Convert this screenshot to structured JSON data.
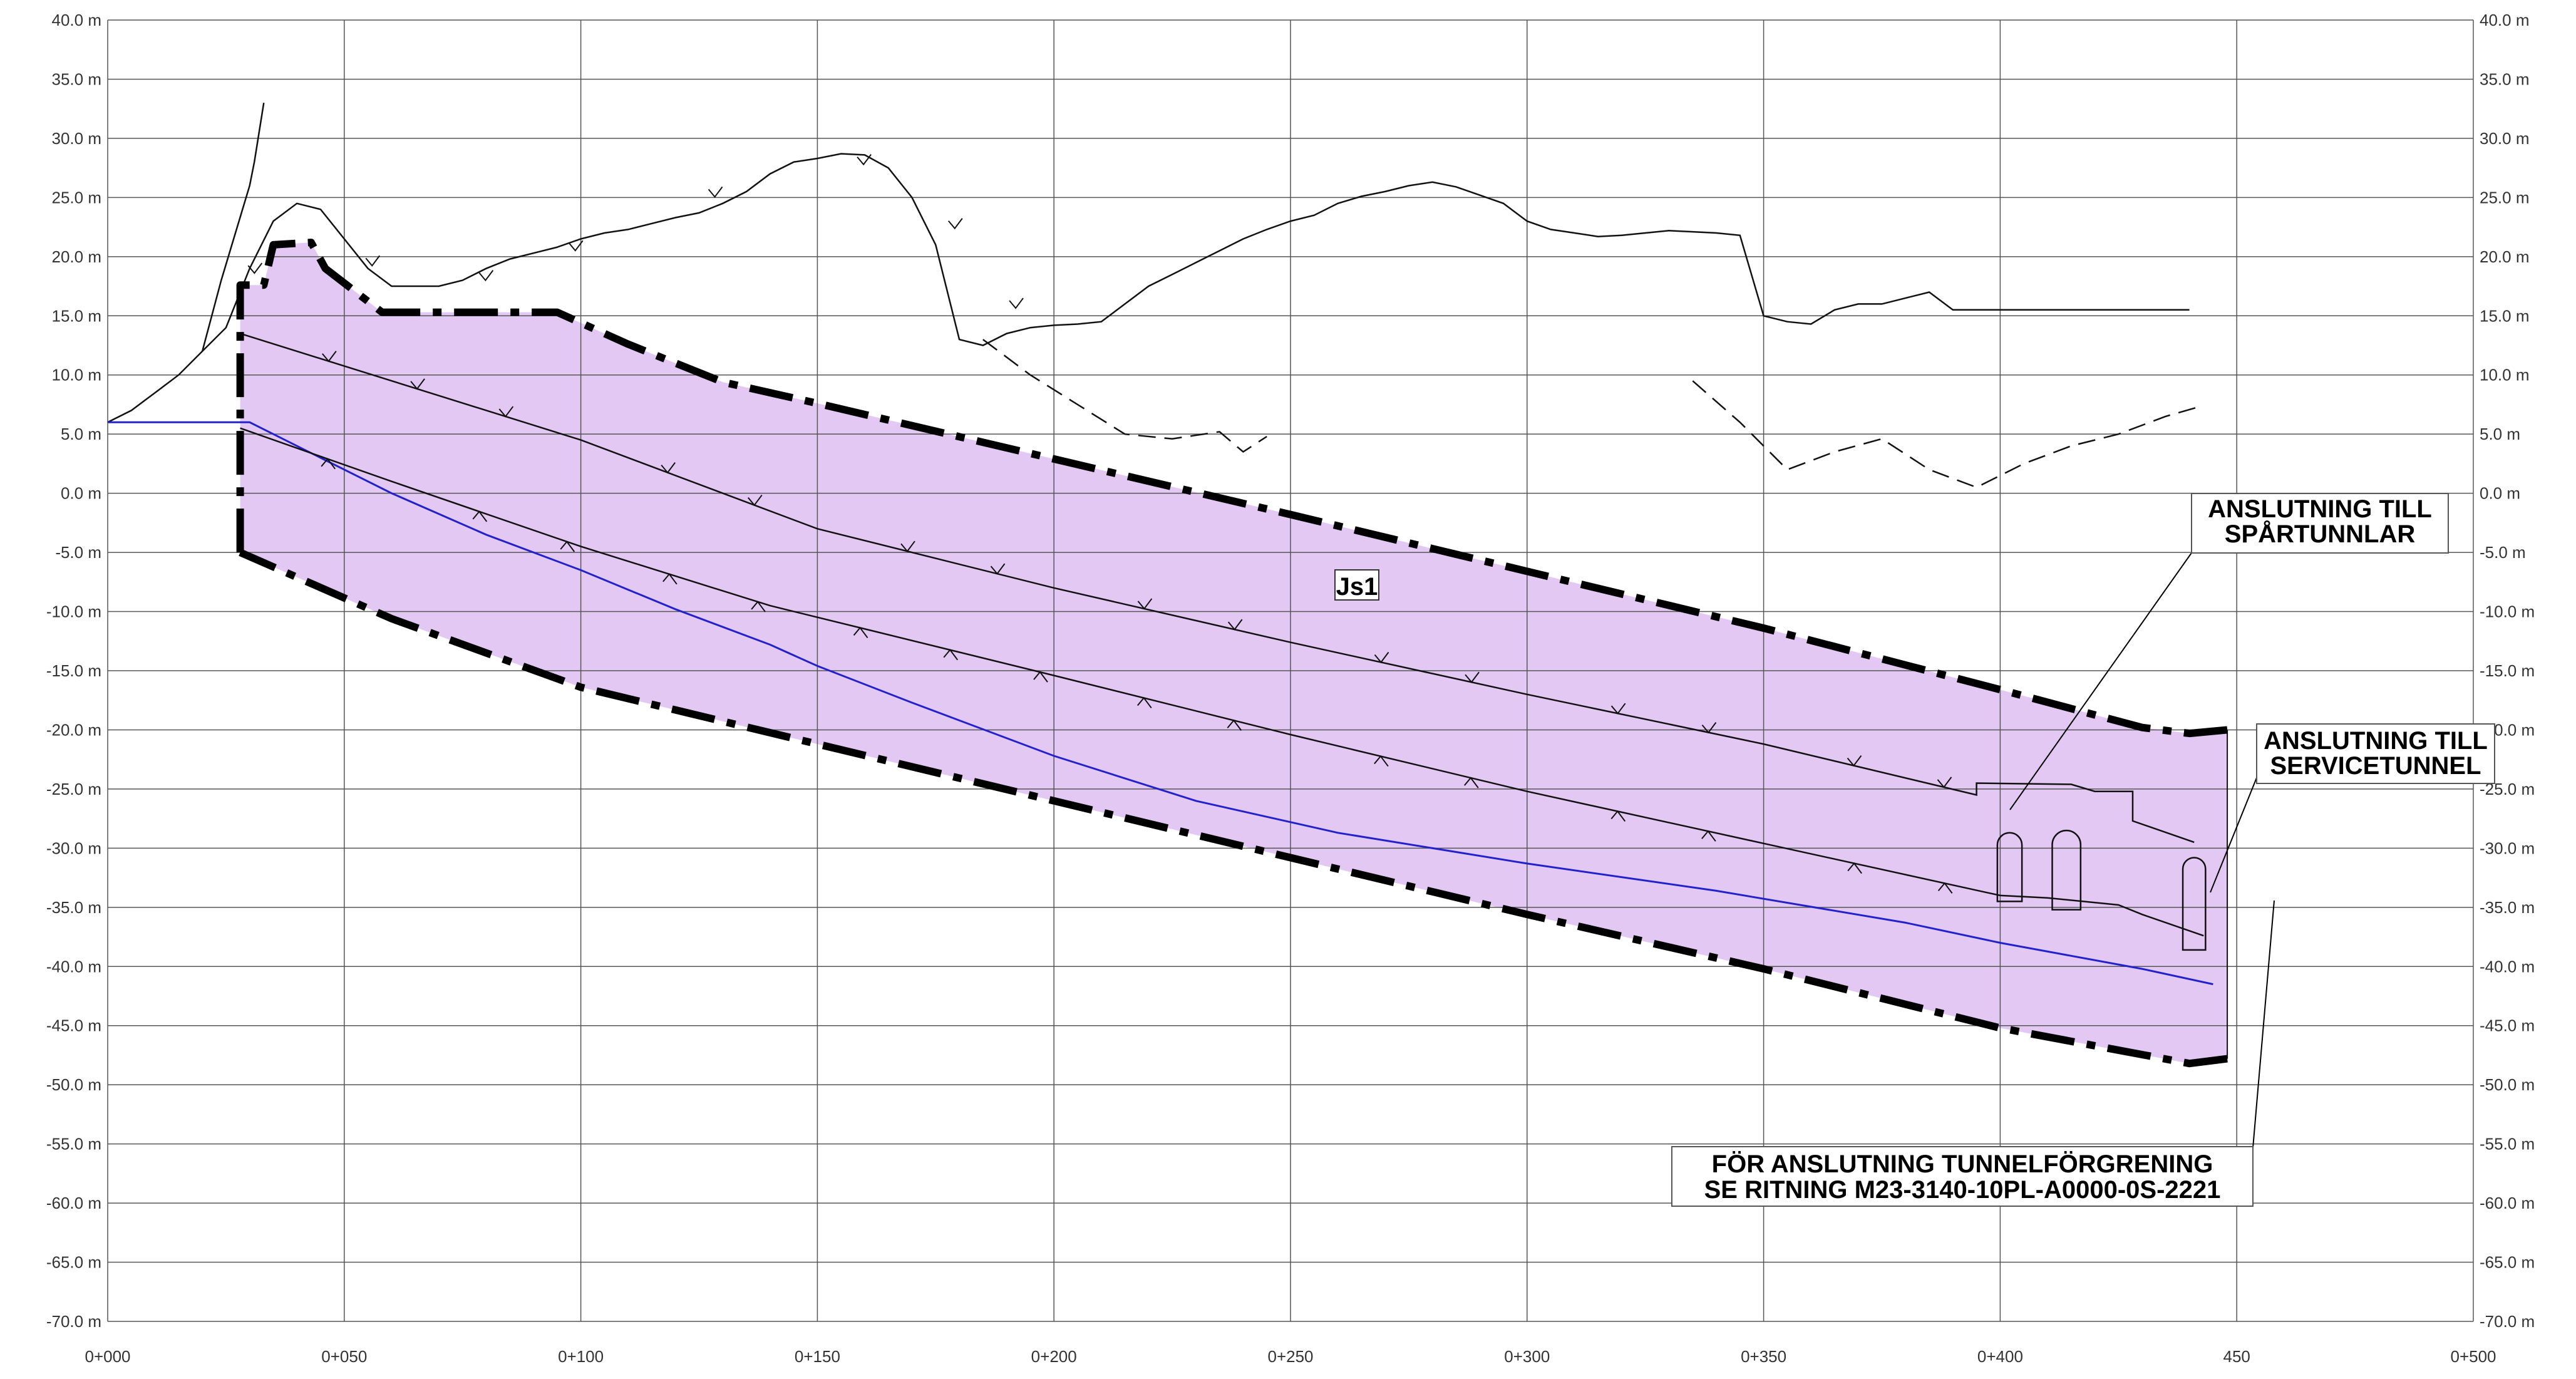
{
  "drawing": {
    "zone_fill": "#E3C8F4",
    "grid_color": "#555555",
    "line_color": "#111111",
    "waterline_color": "#2222CC",
    "boundary_color": "#000000",
    "zone_label": "Js1",
    "callouts": {
      "spartunnlar": [
        "ANSLUTNING TILL",
        "SPÅRTUNNLAR"
      ],
      "servicetunnel": [
        "ANSLUTNING TILL",
        "SERVICETUNNEL"
      ],
      "tunnelforgrening": [
        "FÖR ANSLUTNING TUNNELFÖRGRENING",
        "SE RITNING M23-3140-10PL-A0000-0S-2221"
      ]
    }
  },
  "chart_data": {
    "type": "line",
    "title": "",
    "xlabel": "",
    "ylabel": "",
    "xlim": [
      0,
      500
    ],
    "ylim": [
      -70,
      40
    ],
    "x_ticks": [
      0,
      50,
      100,
      150,
      200,
      250,
      300,
      350,
      400,
      450,
      500
    ],
    "x_tick_labels": [
      "0+000",
      "0+050",
      "0+100",
      "0+150",
      "0+200",
      "0+250",
      "0+300",
      "0+350",
      "0+400",
      "450",
      "0+500"
    ],
    "y_ticks": [
      40,
      35,
      30,
      25,
      20,
      15,
      10,
      5,
      0,
      -5,
      -10,
      -15,
      -20,
      -25,
      -30,
      -35,
      -40,
      -45,
      -50,
      -55,
      -60,
      -65,
      -70
    ],
    "y_tick_labels": [
      "40.0 m",
      "35.0 m",
      "30.0 m",
      "25.0 m",
      "20.0 m",
      "15.0 m",
      "10.0 m",
      "5.0 m",
      "0.0 m",
      "-5.0 m",
      "-10.0 m",
      "-15.0 m",
      "-20.0 m",
      "-25.0 m",
      "-30.0 m",
      "-35.0 m",
      "-40.0 m",
      "-45.0 m",
      "-50.0 m",
      "-55.0 m",
      "-60.0 m",
      "-65.0 m",
      "-70.0 m"
    ],
    "series": [
      {
        "x": [
          0,
          5,
          10,
          15,
          20,
          25,
          30,
          35,
          40,
          45,
          50,
          55,
          60,
          65,
          70,
          75,
          80,
          85,
          90,
          95,
          100,
          105,
          110,
          115,
          120,
          125,
          130,
          135,
          140,
          145,
          150,
          155,
          160,
          165,
          170,
          175,
          180,
          185,
          190,
          195,
          200,
          205,
          210,
          215,
          220,
          225,
          230,
          235,
          240,
          245,
          250,
          255,
          260,
          265,
          270,
          275,
          280,
          285,
          290,
          295,
          300,
          305,
          310,
          315,
          320,
          325,
          330,
          335,
          340,
          345,
          350,
          355,
          360,
          365,
          370,
          375,
          380,
          385,
          390,
          395,
          400,
          405,
          410,
          415,
          420,
          425,
          430,
          435,
          440
        ],
        "y": [
          6,
          7,
          8.5,
          10,
          12,
          14,
          19,
          23,
          24.5,
          24,
          21.5,
          19,
          17.5,
          17.5,
          17.5,
          18,
          19,
          19.8,
          20.3,
          20.8,
          21.5,
          22,
          22.3,
          22.8,
          23.3,
          23.7,
          24.5,
          25.5,
          27,
          28,
          28.3,
          28.7,
          28.6,
          27.5,
          25,
          21,
          13,
          12.5,
          13.5,
          14,
          14.2,
          14.3,
          14.5,
          16,
          17.5,
          18.5,
          19.5,
          20.5,
          21.5,
          22.3,
          23,
          23.5,
          24.5,
          25.1,
          25.5,
          26,
          26.3,
          25.9,
          25.2,
          24.5,
          23,
          22.3,
          22,
          21.7,
          21.8,
          22,
          22.2,
          22.1,
          22,
          21.8,
          15,
          14.5,
          14.3,
          15.5,
          16,
          16,
          16.5,
          17,
          15.5,
          15.5,
          15.5,
          15.5,
          15.5,
          15.5,
          15.5,
          15.5,
          15.5,
          15.5,
          15.5
        ]
      },
      {
        "x": [
          20,
          22,
          24,
          27,
          30,
          31,
          33
        ],
        "y": [
          12,
          15,
          18,
          22,
          26,
          28,
          33
        ]
      },
      {
        "x": [
          0,
          30,
          35,
          45,
          60,
          80,
          100,
          120,
          140,
          150,
          170,
          200,
          230,
          260,
          300,
          340,
          380,
          400,
          430,
          445
        ],
        "y": [
          6,
          6,
          5,
          3,
          0,
          -3.5,
          -6.5,
          -9.8,
          -12.8,
          -14.6,
          -17.7,
          -22.2,
          -26,
          -28.7,
          -31.3,
          -33.6,
          -36.3,
          -38,
          -40.2,
          -41.5
        ]
      }
    ]
  }
}
